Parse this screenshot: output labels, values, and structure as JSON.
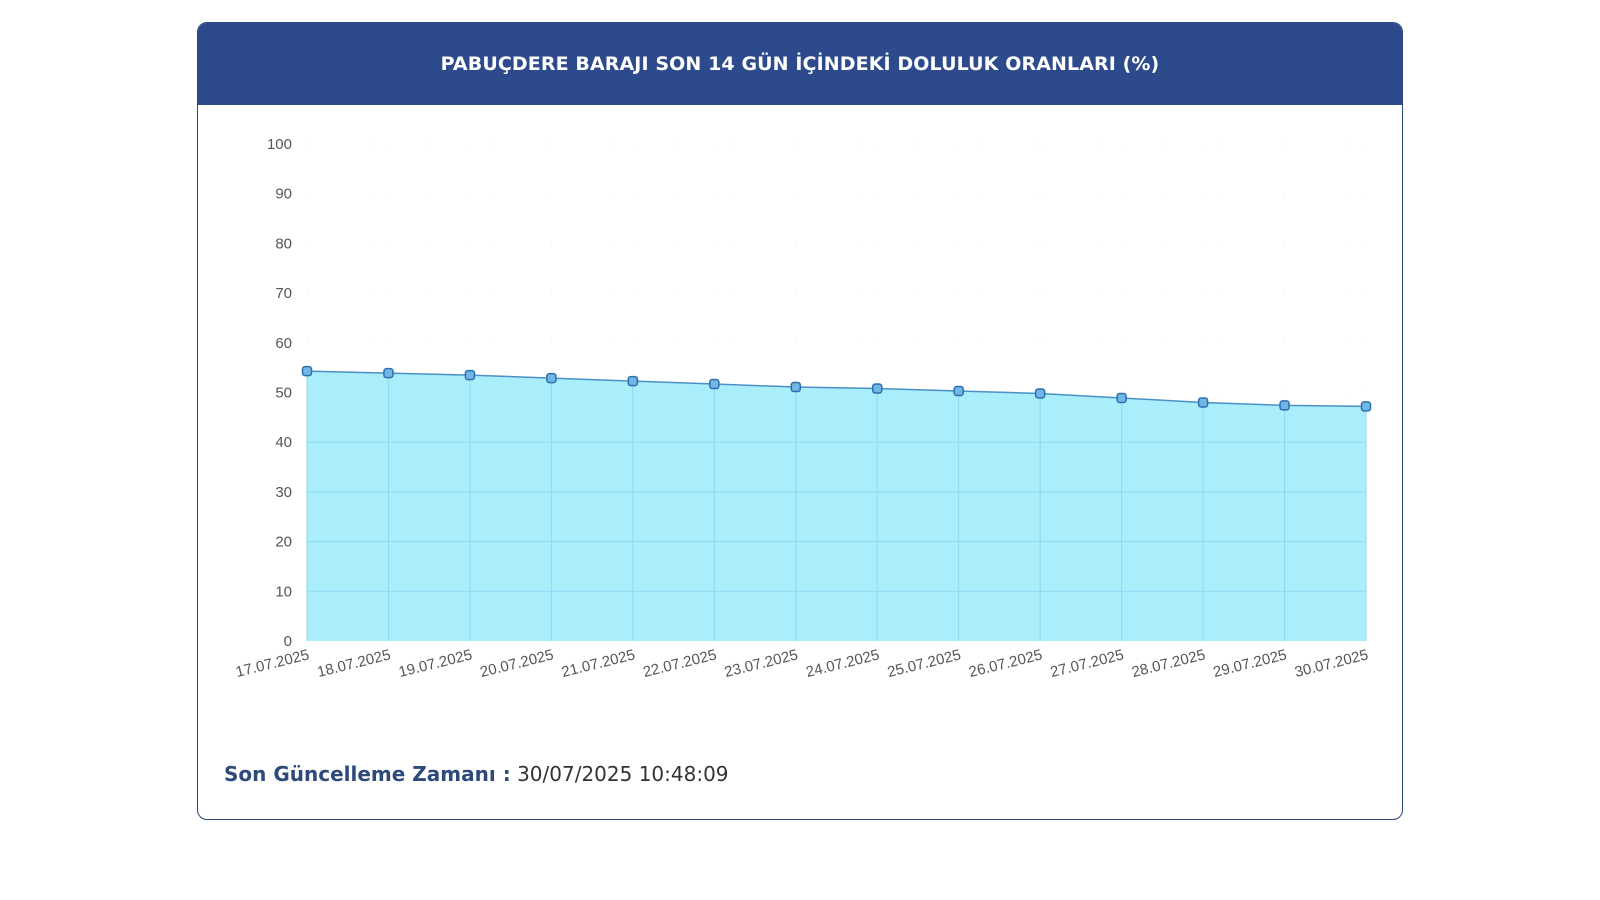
{
  "header": {
    "title": "PABUÇDERE BARAJI SON 14 GÜN İÇİNDEKİ DOLULUK ORANLARI (%)"
  },
  "footer": {
    "label": "Son Güncelleme Zamanı :",
    "value": "30/07/2025 10:48:09"
  },
  "colors": {
    "header_bg": "#2d4a8c",
    "line": "#4a90c8",
    "fill": "#aaeefc",
    "marker": "#2f6fb0"
  },
  "chart_data": {
    "type": "area",
    "title": "PABUÇDERE BARAJI SON 14 GÜN İÇİNDEKİ DOLULUK ORANLARI (%)",
    "xlabel": "",
    "ylabel": "",
    "ylim": [
      0,
      100
    ],
    "yticks": [
      0,
      10,
      20,
      30,
      40,
      50,
      60,
      70,
      80,
      90,
      100
    ],
    "categories": [
      "17.07.2025",
      "18.07.2025",
      "19.07.2025",
      "20.07.2025",
      "21.07.2025",
      "22.07.2025",
      "23.07.2025",
      "24.07.2025",
      "25.07.2025",
      "26.07.2025",
      "27.07.2025",
      "28.07.2025",
      "29.07.2025",
      "30.07.2025"
    ],
    "series": [
      {
        "values": [
          54.3,
          53.9,
          53.5,
          52.9,
          52.3,
          51.7,
          51.1,
          50.8,
          50.3,
          49.8,
          48.9,
          48.0,
          47.4,
          47.2
        ]
      }
    ],
    "grid": true,
    "legend": "none"
  }
}
